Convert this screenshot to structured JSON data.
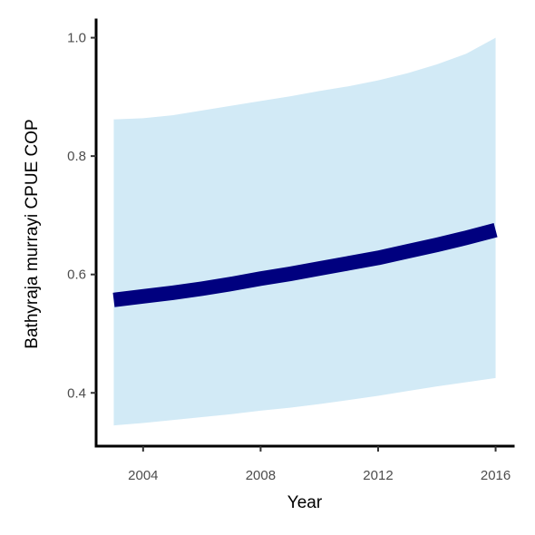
{
  "chart_data": {
    "type": "area",
    "xlabel": "Year",
    "ylabel": "Bathyraja murrayi  CPUE COP",
    "xlim": [
      2002.4,
      2016.6
    ],
    "ylim": [
      0.31,
      1.03
    ],
    "x_ticks": [
      2004,
      2008,
      2012,
      2016
    ],
    "x_tick_labels": [
      "2004",
      "2008",
      "2012",
      "2016"
    ],
    "y_ticks": [
      0.4,
      0.6,
      0.8,
      1.0
    ],
    "y_tick_labels": [
      "0.4",
      "0.6",
      "0.8",
      "1.0"
    ],
    "grid": false,
    "legend": "none",
    "x": [
      2003,
      2004,
      2005,
      2006,
      2007,
      2008,
      2009,
      2010,
      2011,
      2012,
      2013,
      2014,
      2015,
      2016
    ],
    "series": [
      {
        "values": [
          0.557,
          0.563,
          0.569,
          0.576,
          0.584,
          0.593,
          0.601,
          0.61,
          0.619,
          0.628,
          0.639,
          0.65,
          0.662,
          0.675
        ]
      }
    ],
    "ribbon": {
      "lower": [
        0.345,
        0.349,
        0.354,
        0.359,
        0.364,
        0.37,
        0.375,
        0.381,
        0.388,
        0.395,
        0.403,
        0.411,
        0.418,
        0.425
      ],
      "upper": [
        0.862,
        0.864,
        0.869,
        0.877,
        0.885,
        0.893,
        0.901,
        0.91,
        0.918,
        0.928,
        0.94,
        0.955,
        0.973,
        1.0
      ]
    },
    "colors": {
      "line": "#00007f",
      "ribbon": "#d2eaf6",
      "axis": "#000000",
      "tick_text": "#4d4d4d"
    }
  }
}
